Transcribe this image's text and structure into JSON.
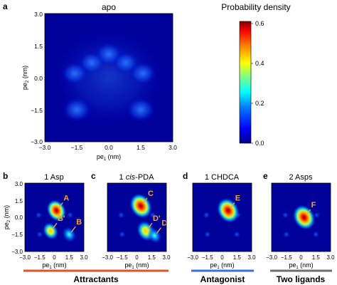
{
  "panel_a": {
    "letter": "a",
    "title": "apo",
    "xlabel_main": "pe",
    "xlabel_sub": "1",
    "xlabel_unit": " (nm)",
    "ylabel_main": "pe",
    "ylabel_sub": "2",
    "ylabel_unit": " (nm)",
    "xticks": [
      "−3.0",
      "−1.5",
      "0.0",
      "1.5",
      "3.0"
    ],
    "yticks": [
      "3.0",
      "1.5",
      "0.0",
      "−1.5",
      "−3.0"
    ]
  },
  "colorbar": {
    "title": "Probability density",
    "ticks": [
      "0.6",
      "0.4",
      "0.2",
      "0.0"
    ],
    "tick_values": [
      0.6,
      0.4,
      0.2,
      0.0
    ],
    "colors": [
      "#00008f",
      "#0000ff",
      "#0080ff",
      "#00ffff",
      "#80ff80",
      "#ffff00",
      "#ff8000",
      "#ff0000",
      "#800000"
    ]
  },
  "small_panels": [
    {
      "letter": "b",
      "title": "1 Asp",
      "title_italic_part": "",
      "labels": [
        "A",
        "B'",
        "B"
      ]
    },
    {
      "letter": "c",
      "title": "1 ",
      "title_italic_part": "cis",
      "title_rest": "-PDA",
      "labels": [
        "C",
        "D'",
        "D"
      ]
    },
    {
      "letter": "d",
      "title": "1 CHDCA",
      "title_italic_part": "",
      "labels": [
        "E"
      ]
    },
    {
      "letter": "e",
      "title": "2 Asps",
      "title_italic_part": "",
      "labels": [
        "F"
      ]
    }
  ],
  "small_xticks": [
    "−3.0",
    "−1.5",
    "0",
    "1.5",
    "3.0"
  ],
  "small_yticks": [
    "3.0",
    "1.5",
    "0.0",
    "−1.5",
    "−3.0"
  ],
  "small_xlabel_main": "pe",
  "small_xlabel_sub": "1",
  "small_xlabel_unit": " (nm)",
  "small_ylabel_main": "pe",
  "small_ylabel_sub": "2",
  "small_ylabel_unit": " (nm)",
  "groups": [
    {
      "label": "Attractants",
      "color": "#d9532b"
    },
    {
      "label": "Antagonist",
      "color": "#3f6fd6"
    },
    {
      "label": "Two ligands",
      "color": "#6e6e6e"
    }
  ],
  "chart_data": [
    {
      "type": "heatmap",
      "title": "apo",
      "xlabel": "pe1 (nm)",
      "ylabel": "pe2 (nm)",
      "xlim": [
        -3.0,
        3.0
      ],
      "ylim": [
        -3.0,
        3.0
      ],
      "colorbar_title": "Probability density",
      "zlim": [
        0.0,
        0.6
      ],
      "blobs": [
        {
          "x": 0.0,
          "y": 1.1,
          "value": 0.16
        },
        {
          "x": -0.8,
          "y": 0.7,
          "value": 0.14
        },
        {
          "x": 0.8,
          "y": 0.7,
          "value": 0.14
        },
        {
          "x": -1.6,
          "y": 0.2,
          "value": 0.15
        },
        {
          "x": 1.6,
          "y": 0.2,
          "value": 0.15
        },
        {
          "x": -1.5,
          "y": -1.5,
          "value": 0.18
        },
        {
          "x": 1.5,
          "y": -1.5,
          "value": 0.18
        }
      ]
    },
    {
      "type": "heatmap",
      "title": "1 Asp",
      "xlim": [
        -3.0,
        3.0
      ],
      "ylim": [
        -3.0,
        3.0
      ],
      "blobs": [
        {
          "x": 0.2,
          "y": 0.6,
          "value": 0.5,
          "label": "A"
        },
        {
          "x": -0.4,
          "y": -1.2,
          "value": 0.35,
          "label": "B'"
        },
        {
          "x": 1.5,
          "y": -1.5,
          "value": 0.3,
          "label": "B"
        }
      ]
    },
    {
      "type": "heatmap",
      "title": "1 cis-PDA",
      "xlim": [
        -3.0,
        3.0
      ],
      "ylim": [
        -3.0,
        3.0
      ],
      "blobs": [
        {
          "x": 0.4,
          "y": 1.0,
          "value": 0.6,
          "label": "C"
        },
        {
          "x": 0.9,
          "y": -1.2,
          "value": 0.45,
          "label": "D'"
        },
        {
          "x": 1.8,
          "y": -1.6,
          "value": 0.3,
          "label": "D"
        }
      ]
    },
    {
      "type": "heatmap",
      "title": "1 CHDCA",
      "xlim": [
        -3.0,
        3.0
      ],
      "ylim": [
        -3.0,
        3.0
      ],
      "blobs": [
        {
          "x": 0.6,
          "y": 0.6,
          "value": 0.6,
          "label": "E"
        }
      ]
    },
    {
      "type": "heatmap",
      "title": "2 Asps",
      "xlim": [
        -3.0,
        3.0
      ],
      "ylim": [
        -3.0,
        3.0
      ],
      "blobs": [
        {
          "x": 0.3,
          "y": 0.0,
          "value": 0.6,
          "label": "F"
        }
      ]
    }
  ]
}
